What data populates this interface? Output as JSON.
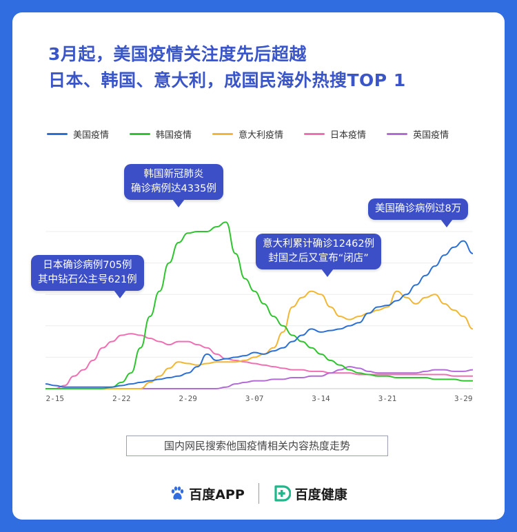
{
  "title": {
    "line1": "3月起，美国疫情关注度先后超越",
    "line2": "日本、韩国、意大利，成国民海外热搜TOP 1"
  },
  "annotations": [
    {
      "line1": "韩国新冠肺炎",
      "line2": "确诊病例达4335例"
    },
    {
      "line1": "美国确诊病例过8万",
      "line2": ""
    },
    {
      "line1": "意大利累计确诊12462例",
      "line2": "封国之后又宣布“闭店”"
    },
    {
      "line1": "日本确诊病例705例",
      "line2": "其中钻石公主号621例"
    }
  ],
  "caption": "国内网民搜索他国疫情相关内容热度走势",
  "footer": {
    "brand1": "百度APP",
    "brand2": "百度健康"
  },
  "colors": {
    "background": "#2f6de0",
    "title": "#3a55c8",
    "bubble": "#3d4fc6"
  },
  "chart_data": {
    "type": "line",
    "x": [
      "2-14",
      "2-15",
      "2-16",
      "2-17",
      "2-18",
      "2-19",
      "2-20",
      "2-21",
      "2-22",
      "2-23",
      "2-24",
      "2-25",
      "2-26",
      "2-27",
      "2-28",
      "2-29",
      "3-01",
      "3-02",
      "3-03",
      "3-04",
      "3-05",
      "3-06",
      "3-07",
      "3-08",
      "3-09",
      "3-10",
      "3-11",
      "3-12",
      "3-13",
      "3-14",
      "3-15",
      "3-16",
      "3-17",
      "3-18",
      "3-19",
      "3-20",
      "3-21",
      "3-22",
      "3-23",
      "3-24",
      "3-25",
      "3-26",
      "3-27",
      "3-28",
      "3-29",
      "3-30"
    ],
    "x_tick_labels": [
      "2-15",
      "2-22",
      "2-29",
      "3-07",
      "3-14",
      "3-21",
      "3-29"
    ],
    "ylim": [
      0,
      100
    ],
    "grid": true,
    "legend_position": "top-left",
    "series": [
      {
        "name": "美国疫情",
        "color": "#2a6fd6",
        "values": [
          3,
          2,
          1,
          1,
          1,
          1,
          1,
          1,
          2,
          3,
          4,
          5,
          6,
          7,
          8,
          10,
          14,
          22,
          18,
          19,
          20,
          21,
          23,
          22,
          24,
          26,
          30,
          34,
          38,
          36,
          37,
          38,
          40,
          42,
          48,
          52,
          53,
          56,
          60,
          66,
          72,
          78,
          85,
          90,
          94,
          86
        ]
      },
      {
        "name": "韩国疫情",
        "color": "#2ec42e",
        "values": [
          0,
          0,
          0,
          0,
          0,
          0,
          0,
          1,
          4,
          10,
          26,
          46,
          62,
          80,
          93,
          99,
          100,
          100,
          103,
          106,
          86,
          70,
          62,
          54,
          46,
          40,
          34,
          30,
          26,
          22,
          18,
          15,
          12,
          10,
          9,
          8,
          8,
          7,
          7,
          7,
          7,
          6,
          6,
          6,
          5,
          5
        ]
      },
      {
        "name": "意大利疫情",
        "color": "#f2b632",
        "values": [
          0,
          0,
          0,
          0,
          0,
          0,
          0,
          0,
          0,
          0,
          0,
          4,
          8,
          13,
          17,
          16,
          15,
          16,
          17,
          17,
          17,
          18,
          20,
          22,
          26,
          36,
          52,
          58,
          62,
          60,
          52,
          46,
          44,
          46,
          48,
          50,
          52,
          62,
          58,
          54,
          58,
          60,
          54,
          50,
          46,
          38
        ]
      },
      {
        "name": "日本疫情",
        "color": "#ef6fb2",
        "values": [
          0,
          0,
          2,
          8,
          12,
          18,
          26,
          30,
          34,
          35,
          34,
          32,
          30,
          28,
          30,
          30,
          28,
          26,
          22,
          19,
          18,
          17,
          16,
          15,
          14,
          13,
          12,
          12,
          11,
          11,
          10,
          10,
          10,
          9,
          9,
          9,
          9,
          9,
          9,
          9,
          9,
          9,
          9,
          8,
          8,
          8
        ]
      },
      {
        "name": "英国疫情",
        "color": "#b26ad6",
        "values": [
          0,
          0,
          0,
          0,
          0,
          0,
          0,
          0,
          0,
          0,
          0,
          0,
          0,
          0,
          0,
          0,
          0,
          0,
          0,
          1,
          3,
          4,
          5,
          5,
          6,
          6,
          7,
          7,
          8,
          8,
          10,
          12,
          14,
          13,
          11,
          10,
          10,
          10,
          10,
          10,
          11,
          12,
          12,
          11,
          11,
          12
        ]
      }
    ]
  }
}
